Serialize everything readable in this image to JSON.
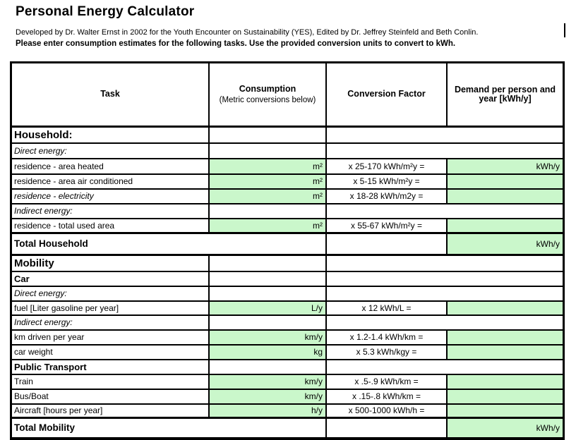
{
  "page": {
    "title": "Personal Energy Calculator",
    "subtitle": "Developed by Dr. Walter Ernst in 2002 for the Youth Encounter on Sustainability (YES), Edited by Dr. Jeffrey Steinfeld and Beth Conlin.",
    "instruction": "Please enter consumption estimates for the following tasks.  Use the provided conversion units to convert to kWh."
  },
  "colors": {
    "input_green": "#caf7cb",
    "border": "#000000",
    "background": "#ffffff"
  },
  "header": {
    "task": "Task",
    "consumption_title": "Consumption",
    "consumption_note": "(Metric conversions below)",
    "conversion": "Conversion Factor",
    "demand": "Demand per person and year [kWh/y]"
  },
  "rows": [
    {
      "type": "section",
      "task": "Household:"
    },
    {
      "type": "sub",
      "task": "Direct energy:"
    },
    {
      "type": "data",
      "task": "residence - area heated",
      "unit": "m²",
      "factor": "x 25-170 kWh/m²y =",
      "demand": "kWh/y"
    },
    {
      "type": "data",
      "task": "residence - area air conditioned",
      "unit": "m²",
      "factor": "x 5-15 kWh/m²y =",
      "demand": ""
    },
    {
      "type": "data-italic",
      "task": "residence - electricity",
      "unit": "m²",
      "factor": "x 18-28 kWh/m2y =",
      "demand": ""
    },
    {
      "type": "sub",
      "task": "Indirect energy:"
    },
    {
      "type": "data",
      "task": "residence - total used area",
      "unit": "m²",
      "factor": "x 55-67 kWh/m²y =",
      "demand": ""
    },
    {
      "type": "total",
      "task": "Total Household",
      "demand": "kWh/y"
    },
    {
      "type": "section",
      "task": "Mobility"
    },
    {
      "type": "group",
      "task": "Car"
    },
    {
      "type": "sub",
      "task": "Direct energy:"
    },
    {
      "type": "data",
      "task": "fuel [Liter gasoline per year]",
      "unit": "L/y",
      "factor": "x 12 kWh/L =",
      "demand": ""
    },
    {
      "type": "sub",
      "task": "Indirect energy:"
    },
    {
      "type": "data",
      "task": "km driven per year",
      "unit": "km/y",
      "factor": "x 1.2-1.4 kWh/km =",
      "demand": ""
    },
    {
      "type": "data",
      "task": "car weight",
      "unit": "kg",
      "factor": "x 5.3 kWh/kgy =",
      "demand": ""
    },
    {
      "type": "group",
      "task": "Public Transport"
    },
    {
      "type": "data",
      "task": "Train",
      "unit": "km/y",
      "factor": "x .5-.9 kWh/km =",
      "demand": ""
    },
    {
      "type": "data",
      "task": "Bus/Boat",
      "unit": "km/y",
      "factor": "x .15-.8 kWh/km =",
      "demand": ""
    },
    {
      "type": "data",
      "task": "Aircraft [hours per year]",
      "unit": "h/y",
      "factor": "x 500-1000 kWh/h =",
      "demand": ""
    },
    {
      "type": "total",
      "task": "Total Mobility",
      "demand": "kWh/y"
    }
  ]
}
